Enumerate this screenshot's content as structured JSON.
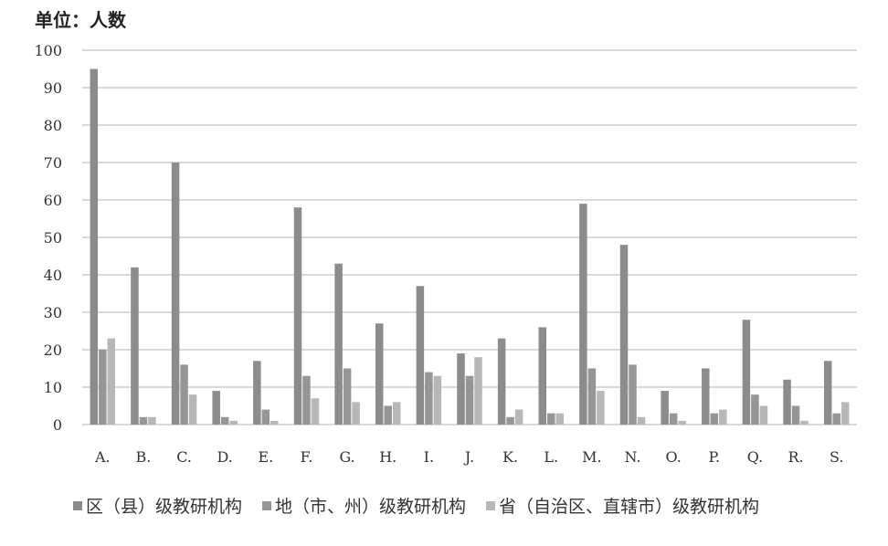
{
  "chart_data": {
    "type": "bar",
    "unit_label": "单位：人数",
    "categories": [
      "A.",
      "B.",
      "C.",
      "D.",
      "E.",
      "F.",
      "G.",
      "H.",
      "I.",
      "J.",
      "K.",
      "L.",
      "M.",
      "N.",
      "O.",
      "P.",
      "Q.",
      "R.",
      "S."
    ],
    "series": [
      {
        "name": "区（县）级教研机构",
        "color": "#8c8c8c",
        "values": [
          95,
          42,
          70,
          9,
          17,
          58,
          43,
          27,
          37,
          19,
          23,
          26,
          59,
          48,
          9,
          15,
          28,
          12,
          17
        ]
      },
      {
        "name": "地（市、州）级教研机构",
        "color": "#969696",
        "values": [
          20,
          2,
          16,
          2,
          4,
          13,
          15,
          5,
          14,
          13,
          2,
          3,
          15,
          16,
          3,
          3,
          8,
          5,
          3
        ]
      },
      {
        "name": "省（自治区、直辖市）级教研机构",
        "color": "#b7b7b7",
        "values": [
          23,
          2,
          8,
          1,
          1,
          7,
          6,
          6,
          13,
          18,
          4,
          3,
          9,
          2,
          1,
          4,
          5,
          1,
          6
        ]
      }
    ],
    "y_ticks": [
      0,
      10,
      20,
      30,
      40,
      50,
      60,
      70,
      80,
      90,
      100
    ],
    "ylim": [
      0,
      100
    ],
    "grid": true,
    "legend_position": "bottom"
  }
}
